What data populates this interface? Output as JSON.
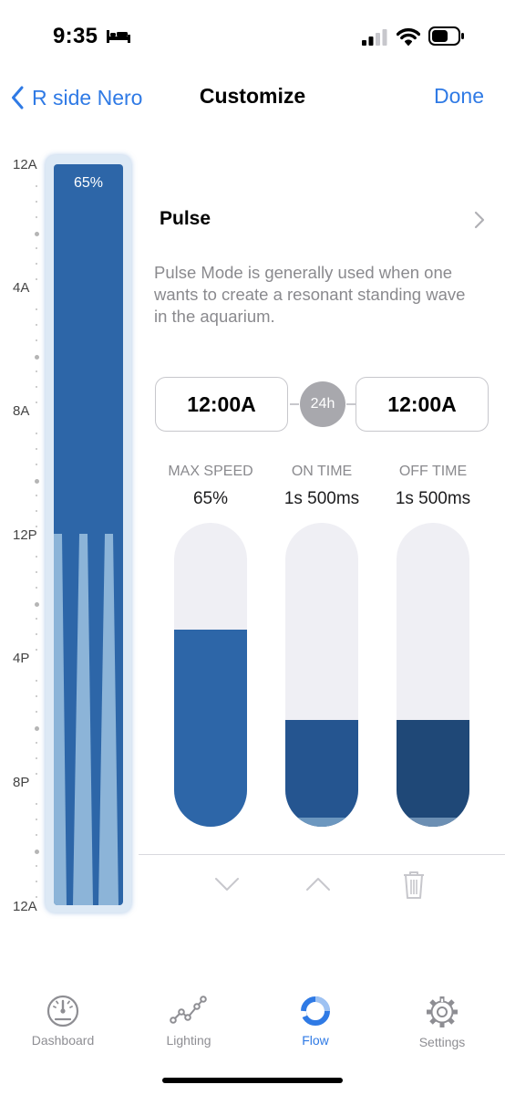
{
  "status_bar": {
    "time": "9:35"
  },
  "nav": {
    "back_label": "R side Nero",
    "title": "Customize",
    "done_label": "Done"
  },
  "timeline": {
    "labels": [
      "12A",
      "4A",
      "8A",
      "12P",
      "4P",
      "8P",
      "12A"
    ],
    "current_percent_label": "65%",
    "colors": {
      "base": "#2d66a8",
      "pulse": "#8cb4d8",
      "frame": "#dde9f5"
    }
  },
  "mode": {
    "name": "Pulse",
    "description": "Pulse Mode is generally used when one wants to create a resonant standing wave in the aquarium."
  },
  "time_range": {
    "start": "12:00A",
    "badge": "24h",
    "end": "12:00A"
  },
  "sliders": [
    {
      "label": "MAX SPEED",
      "value": "65%",
      "fill_fraction": 0.65,
      "color": "#2d66a8"
    },
    {
      "label": "ON TIME",
      "value": "1s 500ms",
      "fill_fraction": 0.35,
      "color": "#255590"
    },
    {
      "label": "OFF TIME",
      "value": "1s 500ms",
      "fill_fraction": 0.35,
      "color": "#1f4877"
    }
  ],
  "actions": {
    "icons": [
      "chevron-down-icon",
      "chevron-up-icon",
      "trash-icon"
    ]
  },
  "tab_bar": {
    "items": [
      {
        "label": "Dashboard",
        "icon": "speedometer-icon",
        "active": false
      },
      {
        "label": "Lighting",
        "icon": "line-graph-icon",
        "active": false
      },
      {
        "label": "Flow",
        "icon": "flow-ring-icon",
        "active": true
      },
      {
        "label": "Settings",
        "icon": "gear-icon",
        "active": false
      }
    ]
  },
  "colors": {
    "accent": "#2f7ae5",
    "secondary_text": "#8a8a8e",
    "inactive_tab": "#8e8e93"
  }
}
